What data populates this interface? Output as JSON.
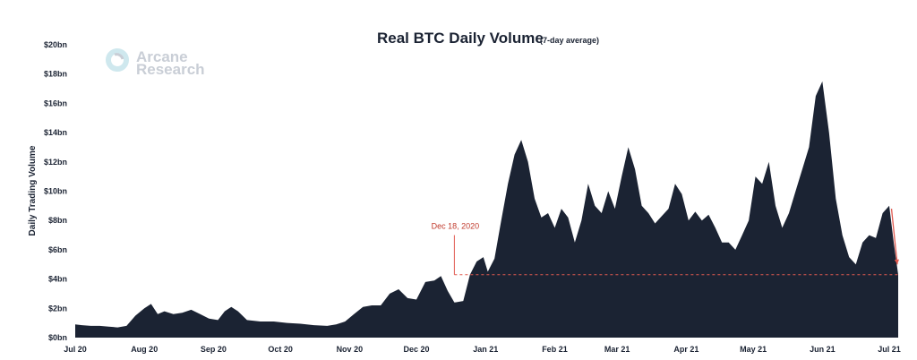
{
  "chart_data": {
    "type": "area",
    "title": "Real BTC Daily Volume",
    "subtitle": "(7-day average)",
    "ylabel": "Daily Trading Volume",
    "xlabel": "",
    "ylim": [
      0,
      20
    ],
    "y_unit": "bn USD",
    "y_ticks": [
      "$0bn",
      "$2bn",
      "$4bn",
      "$6bn",
      "$8bn",
      "$10bn",
      "$12bn",
      "$14bn",
      "$16bn",
      "$18bn",
      "$20bn"
    ],
    "x_ticks": [
      "Jul 20",
      "Aug 20",
      "Sep 20",
      "Oct 20",
      "Nov 20",
      "Dec 20",
      "Jan 21",
      "Feb 21",
      "Mar 21",
      "Apr 21",
      "May 21",
      "Jun 21",
      "Jul 21"
    ],
    "x_range": [
      "2020-07-01",
      "2021-07-05"
    ],
    "grid": false,
    "series": [
      {
        "color": "#1b2333",
        "points": [
          [
            "2020-07-01",
            0.9
          ],
          [
            "2020-07-04",
            0.85
          ],
          [
            "2020-07-08",
            0.8
          ],
          [
            "2020-07-12",
            0.8
          ],
          [
            "2020-07-16",
            0.75
          ],
          [
            "2020-07-20",
            0.7
          ],
          [
            "2020-07-24",
            0.8
          ],
          [
            "2020-07-28",
            1.5
          ],
          [
            "2020-08-01",
            2.0
          ],
          [
            "2020-08-04",
            2.3
          ],
          [
            "2020-08-07",
            1.6
          ],
          [
            "2020-08-10",
            1.8
          ],
          [
            "2020-08-14",
            1.6
          ],
          [
            "2020-08-18",
            1.7
          ],
          [
            "2020-08-22",
            1.9
          ],
          [
            "2020-08-26",
            1.6
          ],
          [
            "2020-08-30",
            1.3
          ],
          [
            "2020-09-03",
            1.2
          ],
          [
            "2020-09-06",
            1.8
          ],
          [
            "2020-09-09",
            2.1
          ],
          [
            "2020-09-12",
            1.8
          ],
          [
            "2020-09-16",
            1.2
          ],
          [
            "2020-09-22",
            1.1
          ],
          [
            "2020-09-28",
            1.1
          ],
          [
            "2020-10-04",
            1.0
          ],
          [
            "2020-10-10",
            0.95
          ],
          [
            "2020-10-16",
            0.85
          ],
          [
            "2020-10-22",
            0.8
          ],
          [
            "2020-10-26",
            0.9
          ],
          [
            "2020-10-30",
            1.1
          ],
          [
            "2020-11-03",
            1.6
          ],
          [
            "2020-11-07",
            2.1
          ],
          [
            "2020-11-11",
            2.2
          ],
          [
            "2020-11-15",
            2.2
          ],
          [
            "2020-11-19",
            3.0
          ],
          [
            "2020-11-23",
            3.3
          ],
          [
            "2020-11-27",
            2.7
          ],
          [
            "2020-12-01",
            2.6
          ],
          [
            "2020-12-05",
            3.8
          ],
          [
            "2020-12-09",
            3.9
          ],
          [
            "2020-12-12",
            4.2
          ],
          [
            "2020-12-15",
            3.2
          ],
          [
            "2020-12-18",
            2.4
          ],
          [
            "2020-12-22",
            2.5
          ],
          [
            "2020-12-25",
            4.3
          ],
          [
            "2020-12-28",
            5.2
          ],
          [
            "2020-12-31",
            5.5
          ],
          [
            "2021-01-02",
            4.5
          ],
          [
            "2021-01-05",
            5.4
          ],
          [
            "2021-01-08",
            8.0
          ],
          [
            "2021-01-11",
            10.5
          ],
          [
            "2021-01-14",
            12.5
          ],
          [
            "2021-01-17",
            13.5
          ],
          [
            "2021-01-20",
            12.0
          ],
          [
            "2021-01-23",
            9.5
          ],
          [
            "2021-01-26",
            8.2
          ],
          [
            "2021-01-29",
            8.5
          ],
          [
            "2021-02-01",
            7.5
          ],
          [
            "2021-02-04",
            8.8
          ],
          [
            "2021-02-07",
            8.2
          ],
          [
            "2021-02-10",
            6.5
          ],
          [
            "2021-02-13",
            8.0
          ],
          [
            "2021-02-16",
            10.5
          ],
          [
            "2021-02-19",
            9.0
          ],
          [
            "2021-02-22",
            8.5
          ],
          [
            "2021-02-25",
            10.0
          ],
          [
            "2021-02-28",
            8.8
          ],
          [
            "2021-03-03",
            11.0
          ],
          [
            "2021-03-06",
            13.0
          ],
          [
            "2021-03-09",
            11.5
          ],
          [
            "2021-03-12",
            9.0
          ],
          [
            "2021-03-15",
            8.5
          ],
          [
            "2021-03-18",
            7.8
          ],
          [
            "2021-03-21",
            8.3
          ],
          [
            "2021-03-24",
            8.8
          ],
          [
            "2021-03-27",
            10.5
          ],
          [
            "2021-03-30",
            9.8
          ],
          [
            "2021-04-02",
            8.0
          ],
          [
            "2021-04-05",
            8.6
          ],
          [
            "2021-04-08",
            8.0
          ],
          [
            "2021-04-11",
            8.4
          ],
          [
            "2021-04-14",
            7.5
          ],
          [
            "2021-04-17",
            6.5
          ],
          [
            "2021-04-20",
            6.5
          ],
          [
            "2021-04-23",
            6.0
          ],
          [
            "2021-04-26",
            7.0
          ],
          [
            "2021-04-29",
            8.0
          ],
          [
            "2021-05-02",
            11.0
          ],
          [
            "2021-05-05",
            10.5
          ],
          [
            "2021-05-08",
            12.0
          ],
          [
            "2021-05-11",
            9.0
          ],
          [
            "2021-05-14",
            7.5
          ],
          [
            "2021-05-17",
            8.5
          ],
          [
            "2021-05-20",
            10.0
          ],
          [
            "2021-05-23",
            11.5
          ],
          [
            "2021-05-26",
            13.0
          ],
          [
            "2021-05-29",
            16.5
          ],
          [
            "2021-06-01",
            17.5
          ],
          [
            "2021-06-04",
            14.0
          ],
          [
            "2021-06-07",
            9.5
          ],
          [
            "2021-06-10",
            7.0
          ],
          [
            "2021-06-13",
            5.5
          ],
          [
            "2021-06-16",
            5.0
          ],
          [
            "2021-06-19",
            6.5
          ],
          [
            "2021-06-22",
            7.0
          ],
          [
            "2021-06-25",
            6.8
          ],
          [
            "2021-06-28",
            8.5
          ],
          [
            "2021-07-01",
            9.0
          ],
          [
            "2021-07-03",
            6.5
          ],
          [
            "2021-07-05",
            4.3
          ]
        ]
      }
    ],
    "reference_line": {
      "date": "2020-12-18",
      "value": 4.3,
      "color": "#e05a50",
      "label": "Dec 18, 2020"
    },
    "trend_arrow": {
      "color": "#e05a50"
    }
  },
  "logo": {
    "line1": "Arcane",
    "line2": "Research"
  }
}
